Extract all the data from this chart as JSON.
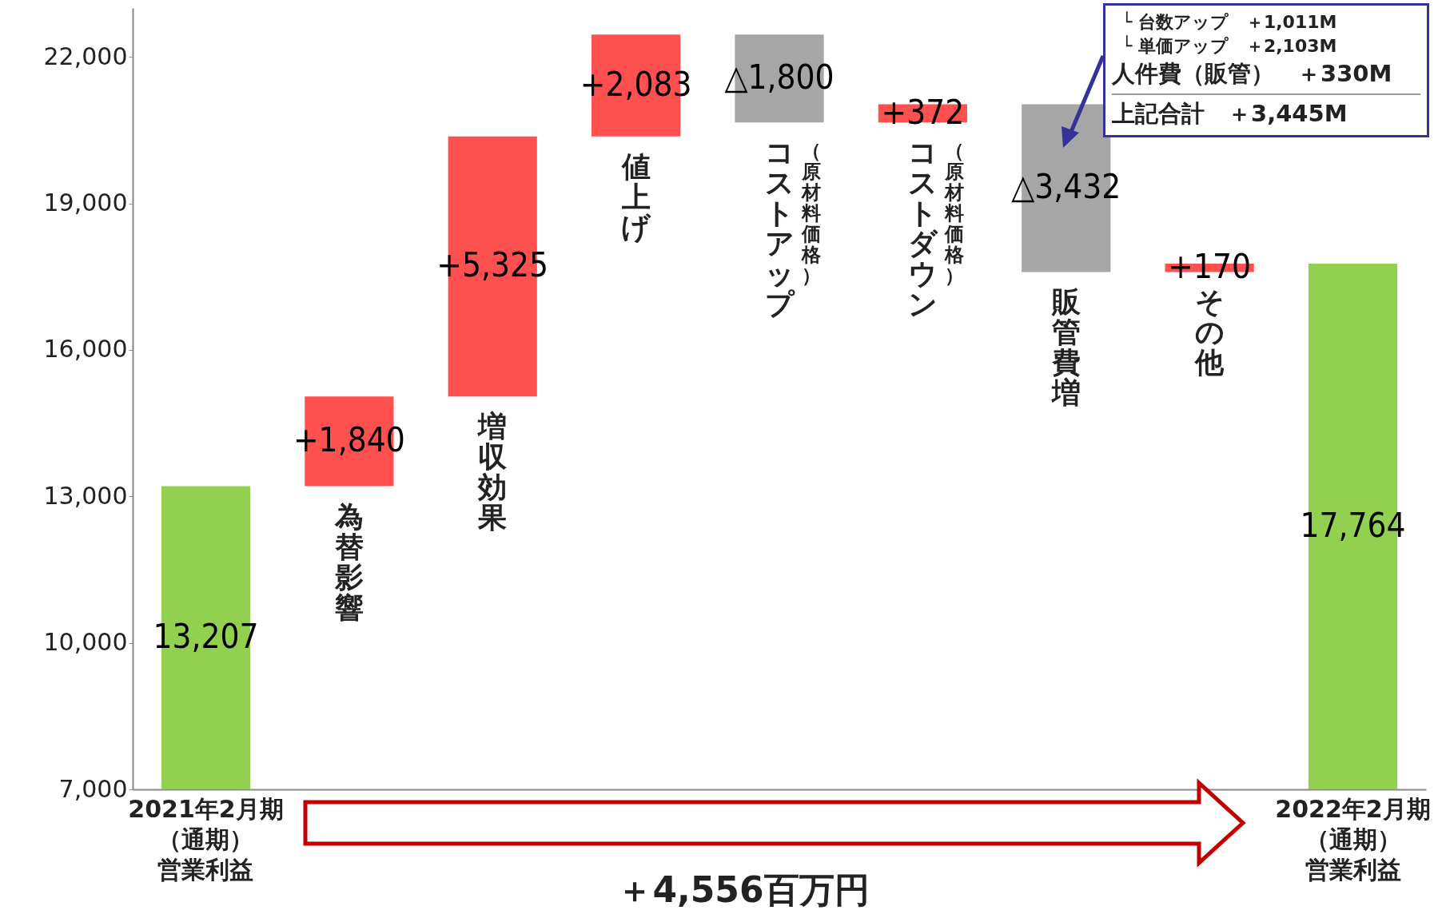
{
  "chart_data": {
    "type": "bar",
    "categories": [
      "2021年2月期（通期）営業利益",
      "為替影響",
      "増収効果",
      "値上げ",
      "コストアップ",
      "コストダウン",
      "販管費増",
      "その他",
      "2022年2月期（通期）営業利益"
    ],
    "values": [
      13207,
      1840,
      5325,
      2083,
      -1800,
      372,
      -3432,
      170,
      17764
    ],
    "base": [
      null,
      13207,
      15047,
      20372,
      22455,
      20655,
      21027,
      17595,
      null
    ],
    "colors": [
      "#92d050",
      "#ff5050",
      "#ff5050",
      "#ff5050",
      "#a6a6a6",
      "#ff5050",
      "#a6a6a6",
      "#ff5050",
      "#92d050"
    ],
    "value_labels": [
      "13,207",
      "+1,840",
      "+5,325",
      "+2,083",
      "△1,800",
      "+372",
      "△3,432",
      "+170",
      "17,764"
    ],
    "ylim": [
      7000,
      23000
    ],
    "yticks": [
      {
        "value": 7000,
        "label": "7,000"
      },
      {
        "value": 10000,
        "label": "10,000"
      },
      {
        "value": 13000,
        "label": "13,000"
      },
      {
        "value": 16000,
        "label": "16,000"
      },
      {
        "value": 19000,
        "label": "19,000"
      },
      {
        "value": 22000,
        "label": "22,000"
      }
    ],
    "grid": false,
    "annotations": [
      "＋4,556百万円",
      {
        "text": "（原材料価格）",
        "x": "コストアップ",
        "y": 20655
      },
      {
        "text": "（原材料価格）",
        "x": "コストダウン",
        "y": 20655
      },
      "└ 台数アップ　＋1,011M",
      "└ 単価アップ　＋2,103M",
      "人件費（販管）　＋330M",
      "上記合計　＋3,445M"
    ]
  }
}
